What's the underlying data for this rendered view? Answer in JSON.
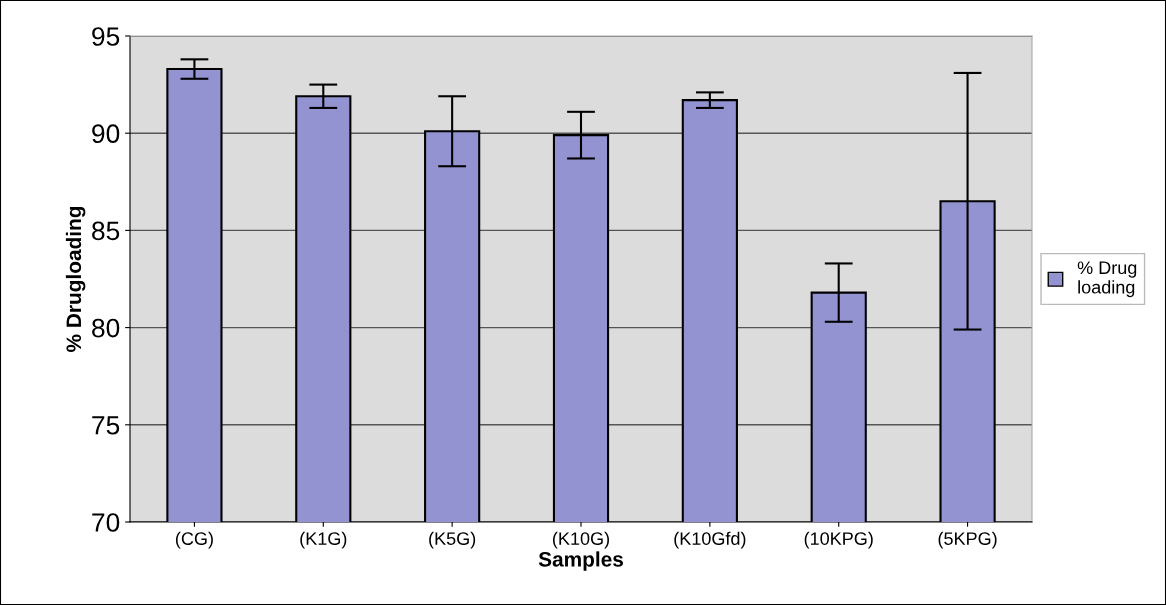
{
  "chart_data": {
    "type": "bar",
    "xlabel": "Samples",
    "ylabel": "% Drugloading",
    "categories": [
      "(CG)",
      "(K1G)",
      "(K5G)",
      "(K10G)",
      "(K10Gfd)",
      "(10KPG)",
      "(5KPG)"
    ],
    "series": [
      {
        "name": "% Drug\nloading",
        "color": "#9393d2",
        "values": [
          93.3,
          91.9,
          90.1,
          89.9,
          91.7,
          81.8,
          86.5
        ],
        "errors": [
          0.5,
          0.6,
          1.8,
          1.2,
          0.4,
          1.5,
          6.6
        ]
      }
    ],
    "ylim": [
      70,
      95
    ],
    "yticks": [
      70,
      75,
      80,
      85,
      90,
      95
    ],
    "grid": "y",
    "legend": "right"
  }
}
